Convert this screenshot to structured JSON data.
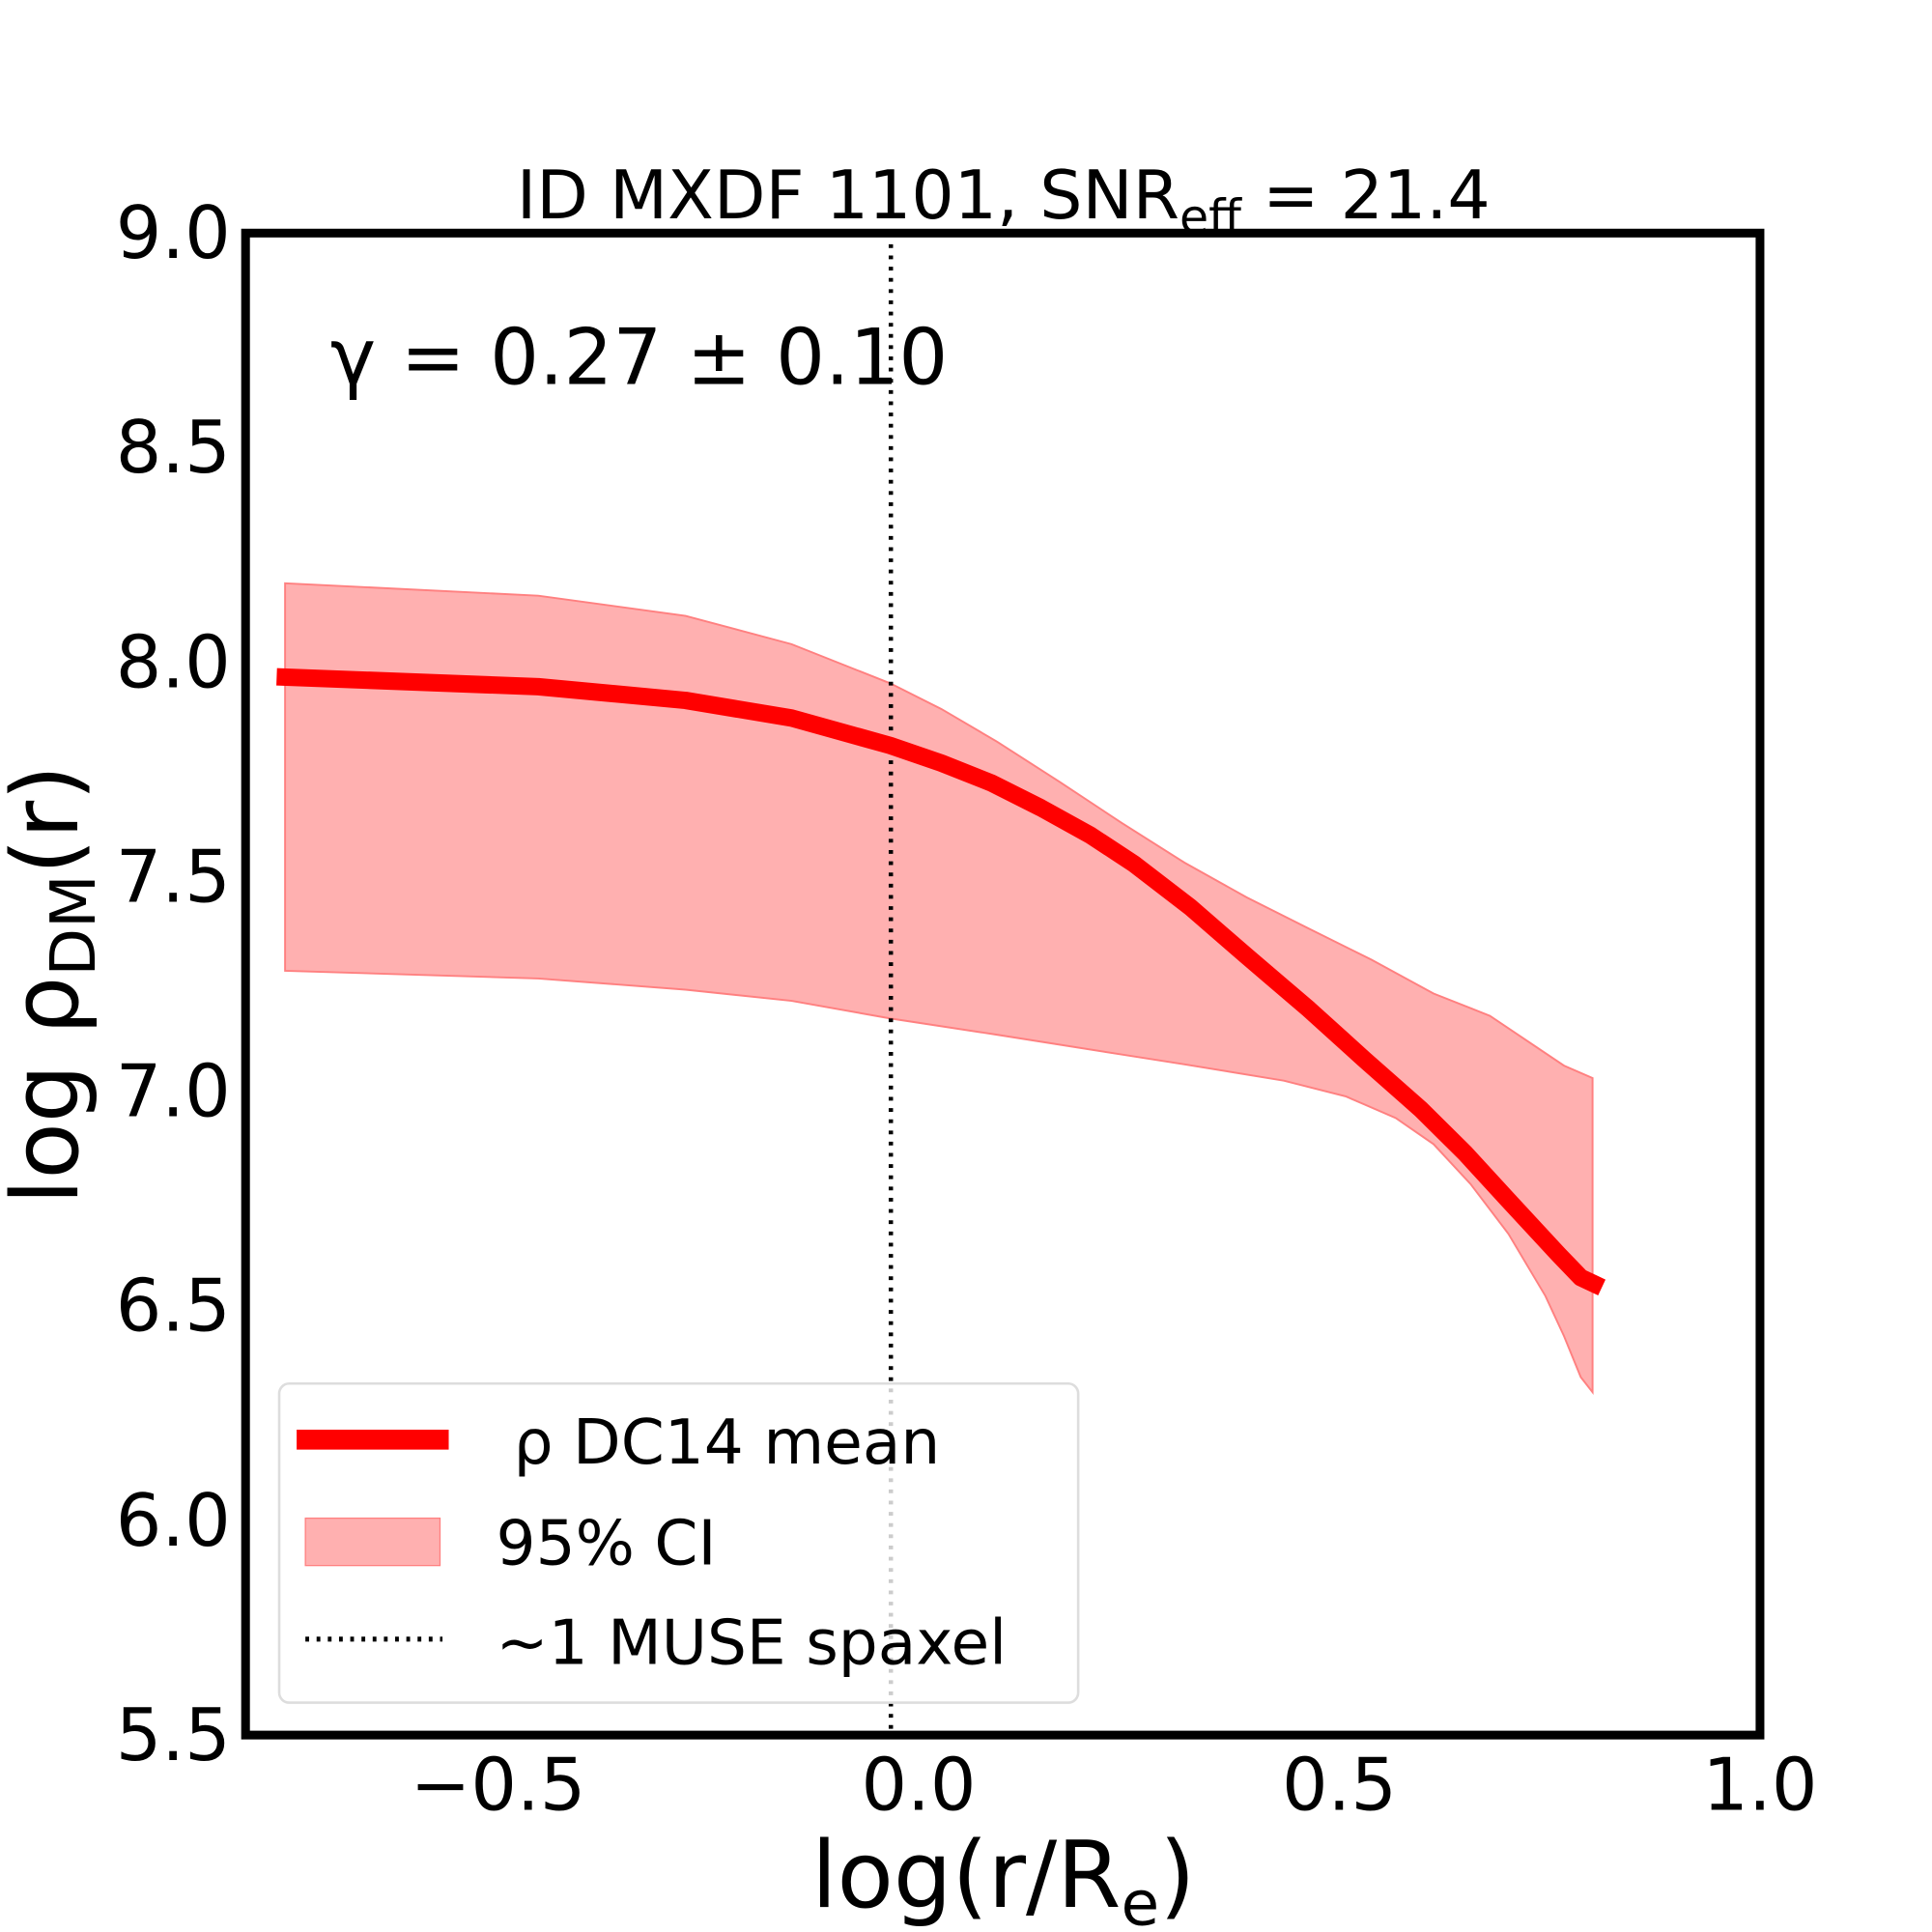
{
  "chart_data": {
    "type": "line",
    "title": "ID MXDF 1101, SNR",
    "title_sub": "eff",
    "title_suffix": " = 21.4",
    "annotation": "γ = 0.27 ± 0.10",
    "xlabel": "log(r/R",
    "xlabel_sub": "e",
    "xlabel_suffix": ")",
    "ylabel": "log ρ",
    "ylabel_sub": "DM",
    "ylabel_suffix": "(r)",
    "xlim": [
      -0.8,
      1.0
    ],
    "ylim": [
      5.5,
      9.0
    ],
    "xticks": [
      "−0.5",
      "0.0",
      "0.5",
      "1.0"
    ],
    "xtick_values": [
      -0.5,
      0.0,
      0.5,
      1.0
    ],
    "yticks": [
      "5.5",
      "6.0",
      "6.5",
      "7.0",
      "7.5",
      "8.0",
      "8.5",
      "9.0"
    ],
    "ytick_values": [
      5.5,
      6.0,
      6.5,
      7.0,
      7.5,
      8.0,
      8.5,
      9.0
    ],
    "grid": false,
    "legend_placement": "lower-left",
    "legend": [
      "ρ DC14 mean",
      "95% CI",
      "~1 MUSE spaxel"
    ],
    "colors": {
      "mean": "#ff0000",
      "band": "#ffb0b0",
      "band_edge": "#ff8080",
      "vline": "#000000"
    },
    "series": [
      {
        "name": "ρ DC14 mean",
        "x": [
          -0.763,
          -0.452,
          -0.277,
          -0.151,
          -0.034,
          0.027,
          0.086,
          0.145,
          0.204,
          0.256,
          0.323,
          0.39,
          0.464,
          0.53,
          0.597,
          0.649,
          0.701,
          0.76,
          0.787,
          0.812
        ],
        "y": [
          7.966,
          7.943,
          7.911,
          7.87,
          7.806,
          7.765,
          7.719,
          7.661,
          7.597,
          7.53,
          7.429,
          7.315,
          7.191,
          7.074,
          6.958,
          6.857,
          6.746,
          6.621,
          6.566,
          6.543
        ]
      }
    ],
    "band": {
      "name": "95% CI",
      "upper": {
        "x": [
          -0.753,
          -0.452,
          -0.277,
          -0.151,
          -0.034,
          0.027,
          0.093,
          0.167,
          0.241,
          0.316,
          0.39,
          0.464,
          0.538,
          0.612,
          0.679,
          0.767,
          0.801
        ],
        "y": [
          8.184,
          8.155,
          8.108,
          8.042,
          7.951,
          7.891,
          7.815,
          7.722,
          7.626,
          7.533,
          7.452,
          7.379,
          7.307,
          7.228,
          7.176,
          7.06,
          7.031
        ]
      },
      "lower": {
        "x": [
          -0.753,
          -0.452,
          -0.277,
          -0.151,
          -0.034,
          0.093,
          0.241,
          0.316,
          0.434,
          0.508,
          0.567,
          0.612,
          0.656,
          0.701,
          0.745,
          0.767,
          0.787,
          0.801
        ],
        "y": [
          7.281,
          7.263,
          7.237,
          7.211,
          7.17,
          7.132,
          7.086,
          7.063,
          7.025,
          6.988,
          6.938,
          6.877,
          6.784,
          6.668,
          6.523,
          6.43,
          6.334,
          6.299
        ]
      }
    },
    "vline": {
      "name": "~1 MUSE spaxel",
      "x": -0.033
    }
  }
}
